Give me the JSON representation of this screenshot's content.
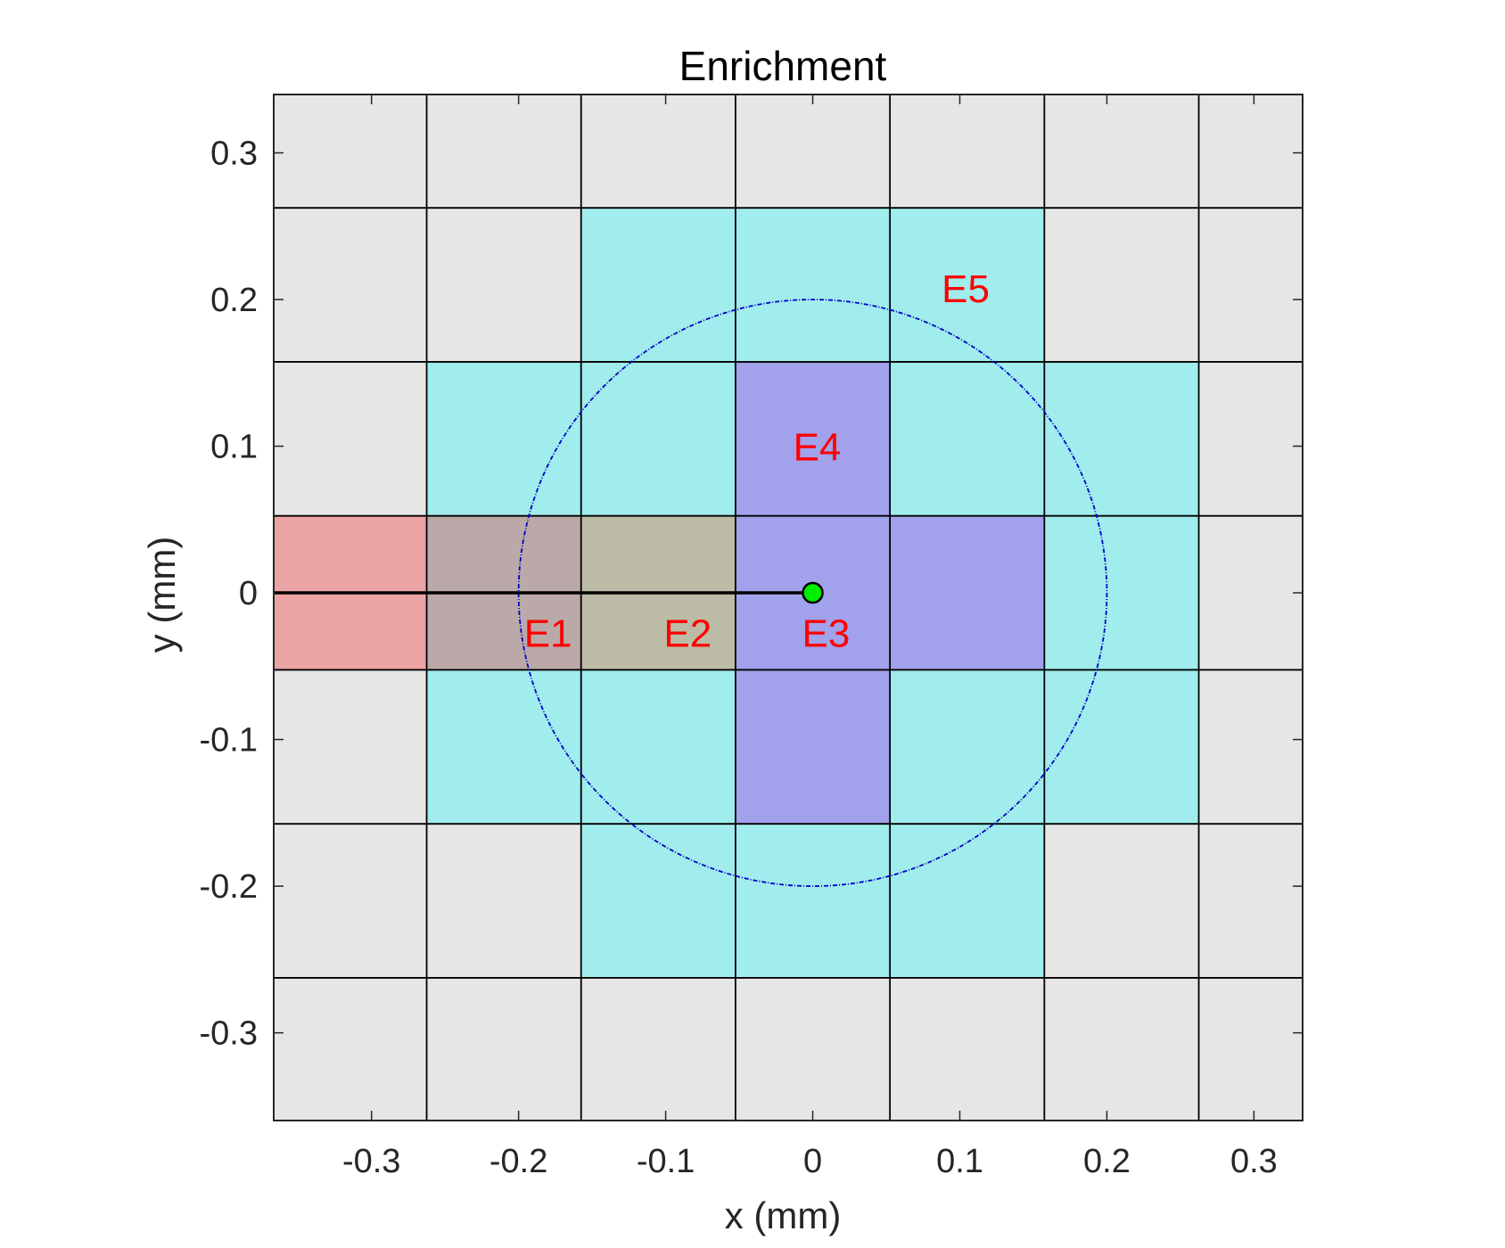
{
  "chart_data": {
    "type": "heatmap",
    "title": "Enrichment",
    "xlabel": "x (mm)",
    "ylabel": "y (mm)",
    "xlim": [
      -0.3665,
      0.3331
    ],
    "ylim": [
      -0.3598,
      0.3398
    ],
    "x_ticks": [
      -0.3,
      -0.2,
      -0.1,
      0,
      0.1,
      0.2,
      0.3
    ],
    "x_tick_labels": [
      "-0.3",
      "-0.2",
      "-0.1",
      "0",
      "0.1",
      "0.2",
      "0.3"
    ],
    "y_ticks": [
      -0.3,
      -0.2,
      -0.1,
      0,
      0.1,
      0.2,
      0.3
    ],
    "y_tick_labels": [
      "-0.3",
      "-0.2",
      "-0.1",
      "0",
      "0.1",
      "0.2",
      "0.3"
    ],
    "grid_x": [
      -0.3665,
      -0.2625,
      -0.1575,
      -0.0525,
      0.0525,
      0.1575,
      0.2625,
      0.3331
    ],
    "grid_y": [
      -0.3598,
      -0.2625,
      -0.1575,
      -0.0525,
      0.0525,
      0.1575,
      0.2625,
      0.3398
    ],
    "grid": false,
    "colors": {
      "none": "#e6e6e6",
      "E1": "#eca3a3",
      "E1E2": "#bba9a9",
      "E2": "#bcbca6",
      "E3": "#a1a1ec",
      "E5": "#a1ecec",
      "grid_line": "#000000",
      "circle": "#0000cc",
      "crack": "#000000",
      "tip": "#00ee00",
      "label": "#ff0000"
    },
    "cell_categories": [
      [
        "none",
        "none",
        "none",
        "none",
        "none",
        "none",
        "none"
      ],
      [
        "none",
        "none",
        "E5",
        "E5",
        "E5",
        "none",
        "none"
      ],
      [
        "none",
        "E5",
        "E5",
        "E3",
        "E5",
        "E5",
        "none"
      ],
      [
        "E1",
        "E1E2",
        "E2",
        "E3",
        "E3",
        "E5",
        "none"
      ],
      [
        "none",
        "E5",
        "E5",
        "E3",
        "E5",
        "E5",
        "none"
      ],
      [
        "none",
        "none",
        "E5",
        "E5",
        "E5",
        "none",
        "none"
      ],
      [
        "none",
        "none",
        "none",
        "none",
        "none",
        "none",
        "none"
      ]
    ],
    "circle": {
      "center": [
        0,
        0
      ],
      "radius": 0.2
    },
    "crack": {
      "x": [
        -0.3665,
        0
      ],
      "y": [
        0,
        0
      ]
    },
    "crack_tip": [
      0,
      0
    ],
    "annotations": [
      {
        "text": "E1",
        "x": -0.18,
        "y": -0.027
      },
      {
        "text": "E2",
        "x": -0.085,
        "y": -0.027
      },
      {
        "text": "E3",
        "x": 0.009,
        "y": -0.027
      },
      {
        "text": "E4",
        "x": 0.003,
        "y": 0.1
      },
      {
        "text": "E5",
        "x": 0.104,
        "y": 0.208
      }
    ]
  }
}
